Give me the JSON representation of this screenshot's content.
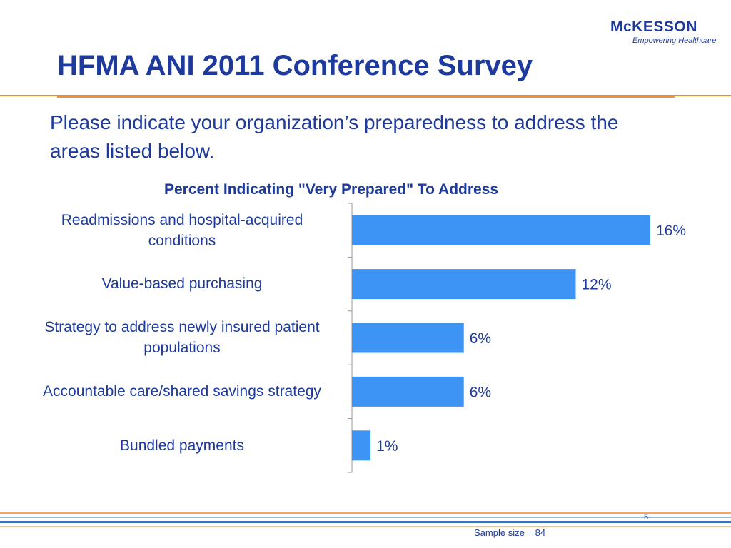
{
  "slide": {
    "logo": "McKESSON",
    "tagline": "Empowering Healthcare",
    "title": "HFMA ANI 2011 Conference Survey",
    "subtitle": "Please indicate your organization’s preparedness to address the areas listed below.",
    "page_number": "5",
    "footnote": "Sample size = 84"
  },
  "chart_data": {
    "type": "hbar",
    "title": "Percent Indicating \"Very Prepared\" To Address",
    "categories": [
      "Readmissions and hospital-acquired conditions",
      "Value-based purchasing",
      "Strategy to address newly insured patient populations",
      "Accountable care/shared savings strategy",
      "Bundled payments"
    ],
    "values": [
      16,
      12,
      6,
      6,
      1
    ],
    "value_labels": [
      "16%",
      "12%",
      "6%",
      "6%",
      "1%"
    ],
    "color": "#3d94f4",
    "xlim": [
      0,
      16
    ]
  }
}
